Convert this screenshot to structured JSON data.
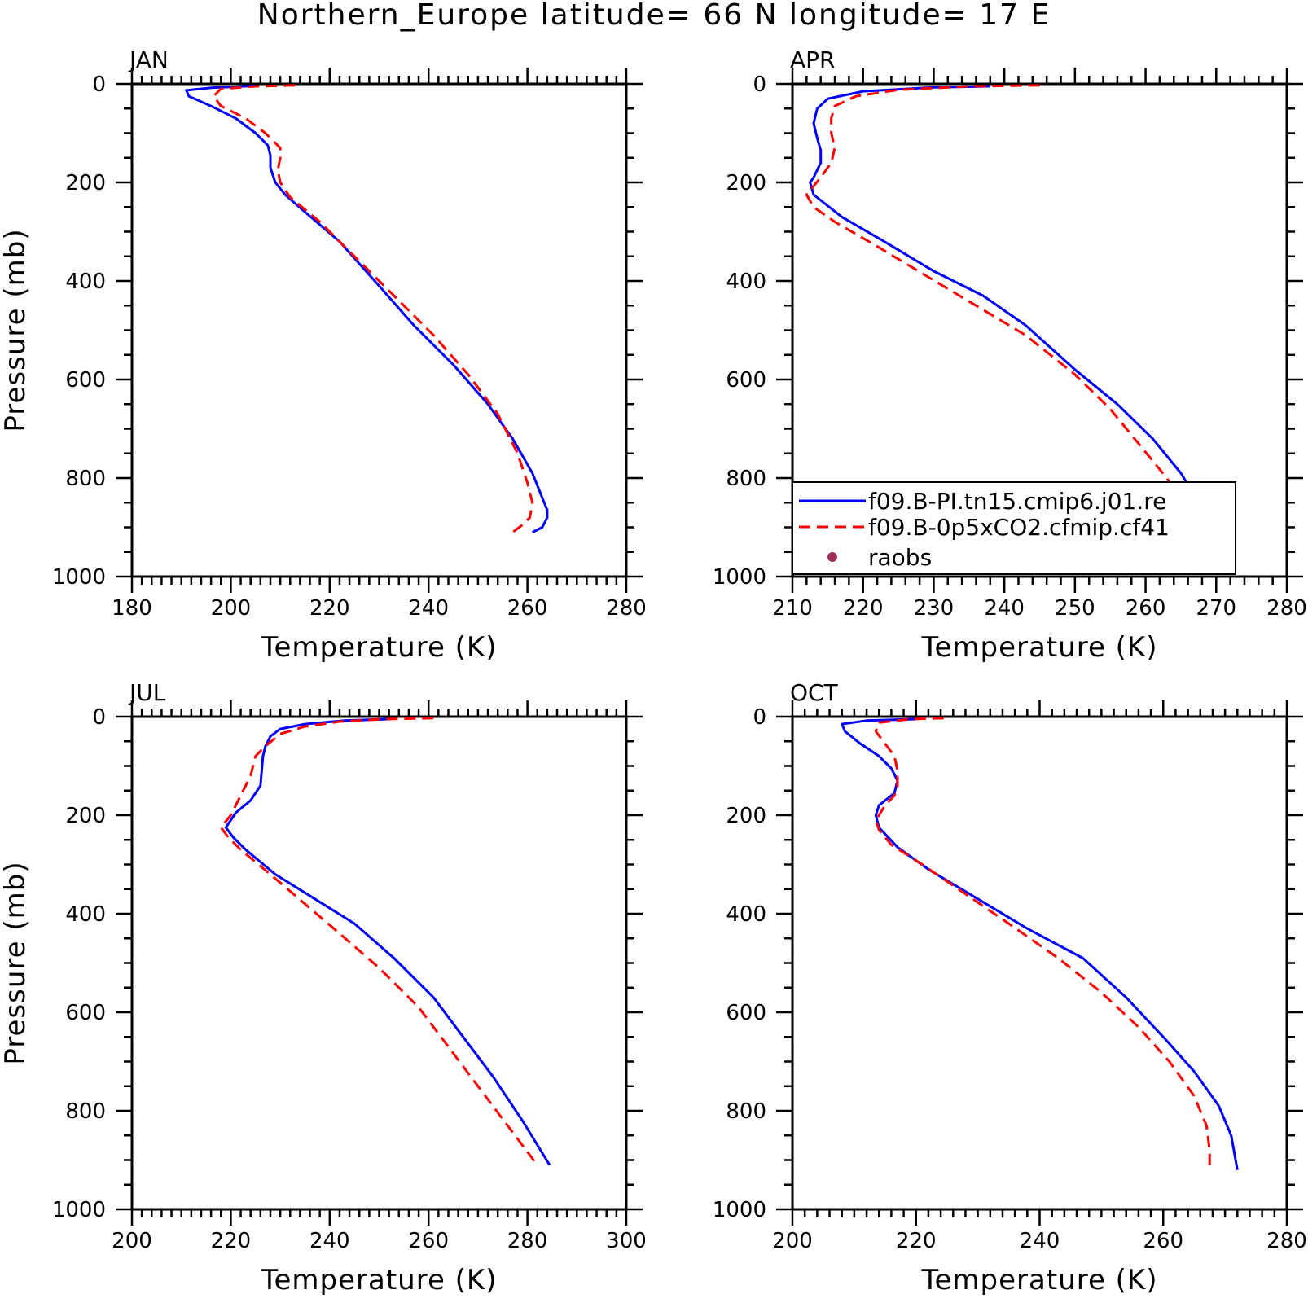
{
  "title": "Northern_Europe  latitude= 66 N longitude= 17 E",
  "legend": {
    "entries": [
      {
        "label": "f09.B-PI.tn15.cmip6.j01.re",
        "color": "#0000ff",
        "style": "solid"
      },
      {
        "label": "f09.B-0p5xCO2.cfmip.cf41",
        "color": "#ff0000",
        "style": "dashed"
      },
      {
        "label": "raobs",
        "color": "#a0305a",
        "style": "dot"
      }
    ]
  },
  "chart_data": [
    {
      "type": "line",
      "month": "JAN",
      "xlabel": "Temperature (K)",
      "ylabel": "Pressure (mb)",
      "xlim": [
        180,
        280
      ],
      "ylim": [
        1000,
        0
      ],
      "xticks": [
        180,
        200,
        220,
        240,
        260,
        280
      ],
      "yticks": [
        0,
        200,
        400,
        600,
        800,
        1000
      ],
      "series": [
        {
          "name": "f09.B-PI.tn15.cmip6.j01.re",
          "color": "#0000ff",
          "dash": "solid",
          "x": [
            205,
            196,
            191,
            191.5,
            196,
            201,
            205,
            207.5,
            208,
            208,
            209,
            211,
            215,
            222,
            230,
            237,
            245,
            252,
            257,
            261,
            263,
            264,
            264,
            263,
            261
          ],
          "y": [
            4,
            8,
            13,
            25,
            45,
            70,
            100,
            125,
            145,
            170,
            200,
            225,
            260,
            320,
            410,
            490,
            570,
            650,
            720,
            790,
            840,
            865,
            880,
            900,
            910
          ]
        },
        {
          "name": "f09.B-0p5xCO2.cfmip.cf41",
          "color": "#ff0000",
          "dash": "dashed",
          "x": [
            213,
            205,
            198,
            196.5,
            198,
            203,
            207,
            210,
            210,
            209.5,
            210,
            212,
            218,
            225,
            233,
            241,
            248,
            254,
            258,
            260,
            261,
            260.5,
            259,
            257
          ],
          "y": [
            3,
            5,
            10,
            25,
            45,
            70,
            100,
            130,
            150,
            175,
            200,
            230,
            280,
            350,
            430,
            510,
            590,
            670,
            750,
            810,
            850,
            880,
            895,
            910
          ]
        }
      ]
    },
    {
      "type": "line",
      "month": "APR",
      "xlabel": "Temperature (K)",
      "ylabel": "",
      "xlim": [
        210,
        280
      ],
      "ylim": [
        1000,
        0
      ],
      "xticks": [
        210,
        220,
        230,
        240,
        250,
        260,
        270,
        280
      ],
      "yticks": [
        0,
        200,
        400,
        600,
        800,
        1000
      ],
      "series": [
        {
          "name": "f09.B-PI.tn15.cmip6.j01.re",
          "color": "#0000ff",
          "dash": "solid",
          "x": [
            238,
            230,
            220,
            215,
            213.5,
            213,
            213.5,
            214,
            214,
            213,
            212.5,
            213,
            217,
            223,
            230,
            237,
            243,
            250,
            256,
            261,
            265,
            268,
            270.5
          ],
          "y": [
            5,
            7,
            15,
            30,
            50,
            80,
            110,
            135,
            160,
            190,
            200,
            225,
            270,
            320,
            380,
            430,
            490,
            580,
            650,
            720,
            790,
            860,
            920
          ]
        },
        {
          "name": "f09.B-0p5xCO2.cfmip.cf41",
          "color": "#ff0000",
          "dash": "dashed",
          "x": [
            245,
            235,
            225,
            219,
            216,
            215.5,
            215.5,
            216,
            215.5,
            214,
            212,
            213,
            216,
            222,
            229,
            236,
            243,
            250,
            255,
            259,
            263,
            265.5,
            266
          ],
          "y": [
            3,
            5,
            12,
            25,
            45,
            70,
            100,
            130,
            160,
            190,
            225,
            250,
            280,
            330,
            390,
            450,
            510,
            590,
            660,
            730,
            800,
            860,
            900
          ]
        }
      ]
    },
    {
      "type": "line",
      "month": "JUL",
      "xlabel": "Temperature (K)",
      "ylabel": "Pressure (mb)",
      "xlim": [
        200,
        300
      ],
      "ylim": [
        1000,
        0
      ],
      "xticks": [
        200,
        220,
        240,
        260,
        280,
        300
      ],
      "yticks": [
        0,
        200,
        400,
        600,
        800,
        1000
      ],
      "series": [
        {
          "name": "f09.B-PI.tn15.cmip6.j01.re",
          "color": "#0000ff",
          "dash": "solid",
          "x": [
            252,
            243,
            235,
            230,
            228,
            227,
            226.5,
            226,
            224,
            221,
            219,
            220.5,
            223,
            229,
            237,
            245,
            253,
            261,
            267,
            273,
            279,
            284.5
          ],
          "y": [
            5,
            8,
            15,
            25,
            40,
            60,
            80,
            140,
            170,
            195,
            225,
            245,
            270,
            320,
            370,
            420,
            490,
            570,
            650,
            730,
            820,
            910
          ]
        },
        {
          "name": "f09.B-0p5xCO2.cfmip.cf41",
          "color": "#ff0000",
          "dash": "dashed",
          "x": [
            261,
            251,
            242,
            235,
            230,
            227,
            225,
            224,
            222,
            220,
            218,
            219.5,
            222,
            228,
            235,
            242,
            250,
            258,
            264,
            270,
            276,
            282
          ],
          "y": [
            3,
            5,
            10,
            20,
            35,
            60,
            80,
            120,
            160,
            200,
            225,
            245,
            270,
            320,
            380,
            440,
            510,
            590,
            670,
            750,
            830,
            910
          ]
        }
      ]
    },
    {
      "type": "line",
      "month": "OCT",
      "xlabel": "Temperature (K)",
      "ylabel": "",
      "xlim": [
        200,
        280
      ],
      "ylim": [
        1000,
        0
      ],
      "xticks": [
        200,
        220,
        240,
        260,
        280
      ],
      "yticks": [
        0,
        200,
        400,
        600,
        800,
        1000
      ],
      "series": [
        {
          "name": "f09.B-PI.tn15.cmip6.j01.re",
          "color": "#0000ff",
          "dash": "solid",
          "x": [
            220,
            212,
            208,
            208.5,
            211,
            214,
            216,
            217,
            216.5,
            214,
            213.5,
            214,
            217,
            222,
            230,
            238,
            247,
            254,
            260,
            265,
            269,
            271,
            272
          ],
          "y": [
            5,
            8,
            15,
            30,
            55,
            80,
            105,
            130,
            155,
            180,
            200,
            225,
            265,
            310,
            370,
            430,
            490,
            570,
            650,
            720,
            790,
            850,
            920
          ]
        },
        {
          "name": "f09.B-0p5xCO2.cfmip.cf41",
          "color": "#ff0000",
          "dash": "dashed",
          "x": [
            224.5,
            219,
            214,
            213.5,
            215,
            216.5,
            217,
            217,
            216.5,
            215,
            213.5,
            214,
            216,
            221,
            228,
            235,
            243,
            250,
            256,
            261,
            265,
            267,
            267.5,
            267.5
          ],
          "y": [
            3,
            5,
            12,
            30,
            55,
            80,
            110,
            140,
            160,
            180,
            210,
            230,
            260,
            300,
            360,
            420,
            490,
            560,
            630,
            700,
            770,
            830,
            880,
            920
          ]
        }
      ]
    }
  ]
}
